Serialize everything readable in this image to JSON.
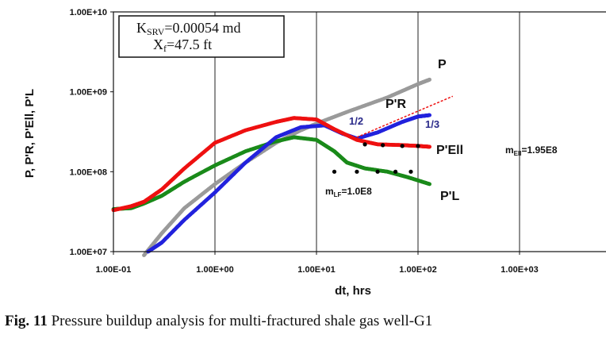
{
  "chart_data": {
    "type": "scatter",
    "scale": {
      "x": "log",
      "y": "log"
    },
    "xlim": [
      0.1,
      10000
    ],
    "ylim": [
      10000000,
      10000000000
    ],
    "x_ticks": [
      "1.00E-01",
      "1.00E+00",
      "1.00E+01",
      "1.00E+02",
      "1.00E+03"
    ],
    "y_ticks": [
      "1.00E+07",
      "1.00E+08",
      "1.00E+09",
      "1.00E+10"
    ],
    "xlabel": "dt, hrs",
    "ylabel": "P, P'R, P'Ell, P'L",
    "grid": "vertical",
    "legend_box": {
      "line1_prefix": "K",
      "line1_sub": "SRV",
      "line1_rest": "=0.00054 md",
      "line2_prefix": "X",
      "line2_sub": "f",
      "line2_rest": "=47.5 ft"
    },
    "series": [
      {
        "name": "P",
        "color": "#9a9a9a",
        "x": [
          0.2,
          0.3,
          0.5,
          1,
          2,
          4,
          7,
          10,
          20,
          50,
          100,
          130
        ],
        "y": [
          9000000,
          17000000,
          35000000,
          70000000,
          130000000,
          230000000,
          330000000,
          400000000,
          560000000,
          850000000,
          1250000000,
          1420000000
        ]
      },
      {
        "name": "P'R",
        "color": "#2222dd",
        "x": [
          0.22,
          0.3,
          0.5,
          1,
          2,
          4,
          7,
          12,
          18,
          25,
          40,
          70,
          100,
          130
        ],
        "y": [
          10000000,
          13000000,
          25000000,
          55000000,
          130000000,
          270000000,
          360000000,
          380000000,
          300000000,
          260000000,
          310000000,
          420000000,
          490000000,
          510000000
        ]
      },
      {
        "name": "P'Ell",
        "color": "#ee1111",
        "x": [
          0.1,
          0.15,
          0.2,
          0.3,
          0.5,
          1,
          2,
          4,
          6,
          10,
          15,
          25,
          40,
          70,
          100,
          130
        ],
        "y": [
          33000000,
          37000000,
          42000000,
          60000000,
          110000000,
          230000000,
          330000000,
          420000000,
          470000000,
          450000000,
          340000000,
          250000000,
          220000000,
          215000000,
          210000000,
          205000000
        ]
      },
      {
        "name": "P'L",
        "color": "#1a8a1a",
        "x": [
          0.1,
          0.15,
          0.2,
          0.3,
          0.5,
          1,
          2,
          4,
          6,
          10,
          15,
          20,
          30,
          50,
          80,
          130
        ],
        "y": [
          34000000,
          35000000,
          40000000,
          50000000,
          75000000,
          120000000,
          180000000,
          240000000,
          270000000,
          250000000,
          180000000,
          130000000,
          110000000,
          100000000,
          85000000,
          70000000
        ]
      }
    ],
    "fit_points": [
      {
        "color": "#000000",
        "x": [
          30,
          45,
          70,
          100
        ],
        "y": [
          220000000,
          215000000,
          210000000,
          210000000
        ]
      },
      {
        "color": "#000000",
        "x": [
          15,
          25,
          40,
          60,
          85
        ],
        "y": [
          100000000,
          100000000,
          100000000,
          100000000,
          100000000
        ]
      }
    ],
    "trend_line": {
      "color": "#ee1111",
      "x": [
        25,
        220
      ],
      "y": [
        270000000,
        880000000
      ]
    },
    "slope_labels": [
      "1/2",
      "1/3"
    ],
    "annotations": {
      "m_ell": {
        "prefix": "m",
        "sub": "Ell",
        "rest": "=1.95E8"
      },
      "m_lf": {
        "prefix": "m",
        "sub": "LF",
        "rest": "=1.0E8"
      }
    }
  },
  "caption": {
    "fig_label": "Fig. 11",
    "text": "  Pressure buildup analysis for multi-fractured shale gas well-G1"
  }
}
